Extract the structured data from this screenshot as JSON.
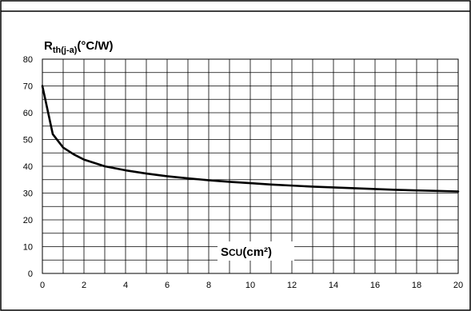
{
  "chart_data": {
    "type": "line",
    "ylabel": {
      "main": "R",
      "sub": "th(j-a)",
      "suffix": "(°C/W)"
    },
    "xlabel": {
      "main": "S",
      "sub": "CU",
      "suffix": "(cm²)"
    },
    "xlim": [
      0,
      20
    ],
    "ylim": [
      0,
      80
    ],
    "xticks": [
      "0",
      "2",
      "4",
      "6",
      "8",
      "10",
      "12",
      "14",
      "16",
      "18",
      "20"
    ],
    "yticks": [
      "0",
      "10",
      "20",
      "30",
      "40",
      "50",
      "60",
      "70",
      "80"
    ],
    "grid": true,
    "series": [
      {
        "x": [
          0,
          0.5,
          1,
          1.5,
          2,
          3,
          4,
          5,
          6,
          7,
          8,
          9,
          10,
          11,
          12,
          13,
          14,
          15,
          16,
          17,
          18,
          19,
          20
        ],
        "y": [
          70,
          52,
          47,
          44.5,
          42.5,
          40,
          38.5,
          37.3,
          36.3,
          35.5,
          34.8,
          34.2,
          33.7,
          33.2,
          32.8,
          32.4,
          32.1,
          31.8,
          31.5,
          31.2,
          31,
          30.8,
          30.6
        ]
      }
    ],
    "line_color": "#000000"
  }
}
